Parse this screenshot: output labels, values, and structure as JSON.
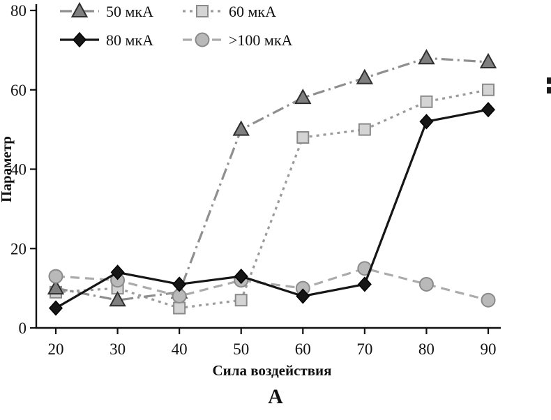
{
  "figure": {
    "caption": "А"
  },
  "chart_data": {
    "type": "line",
    "title": "",
    "xlabel": "Сила воздействия",
    "ylabel": "Параметр",
    "xlim": [
      20,
      90
    ],
    "ylim": [
      0,
      80
    ],
    "xticks": [
      20,
      30,
      40,
      50,
      60,
      70,
      80,
      90
    ],
    "yticks": [
      0,
      20,
      40,
      60,
      80
    ],
    "grid": false,
    "legend_position": "top-left",
    "x": [
      20,
      30,
      40,
      50,
      60,
      70,
      80,
      90
    ],
    "series": [
      {
        "name": "50 мкА",
        "marker": "triangle",
        "line_style": "dashdot",
        "color": "#8f8f8f",
        "marker_fill": "#7f7f7f",
        "marker_stroke": "#2e2e2e",
        "values": [
          10,
          7,
          9,
          50,
          58,
          63,
          68,
          67
        ]
      },
      {
        "name": "60 мкА",
        "marker": "square",
        "line_style": "dotted",
        "color": "#9b9b9b",
        "marker_fill": "#d4d4d4",
        "marker_stroke": "#8a8a8a",
        "values": [
          9,
          10,
          5,
          7,
          48,
          50,
          57,
          60
        ]
      },
      {
        "name": "80 мкА",
        "marker": "diamond",
        "line_style": "solid",
        "color": "#161616",
        "marker_fill": "#161616",
        "marker_stroke": "#000000",
        "values": [
          5,
          14,
          11,
          13,
          8,
          11,
          52,
          55
        ]
      },
      {
        "name": ">100 мкА",
        "marker": "circle",
        "line_style": "dashed",
        "color": "#ababab",
        "marker_fill": "#b9b9b9",
        "marker_stroke": "#8a8a8a",
        "values": [
          13,
          12,
          8,
          12,
          10,
          15,
          11,
          7
        ]
      }
    ]
  }
}
